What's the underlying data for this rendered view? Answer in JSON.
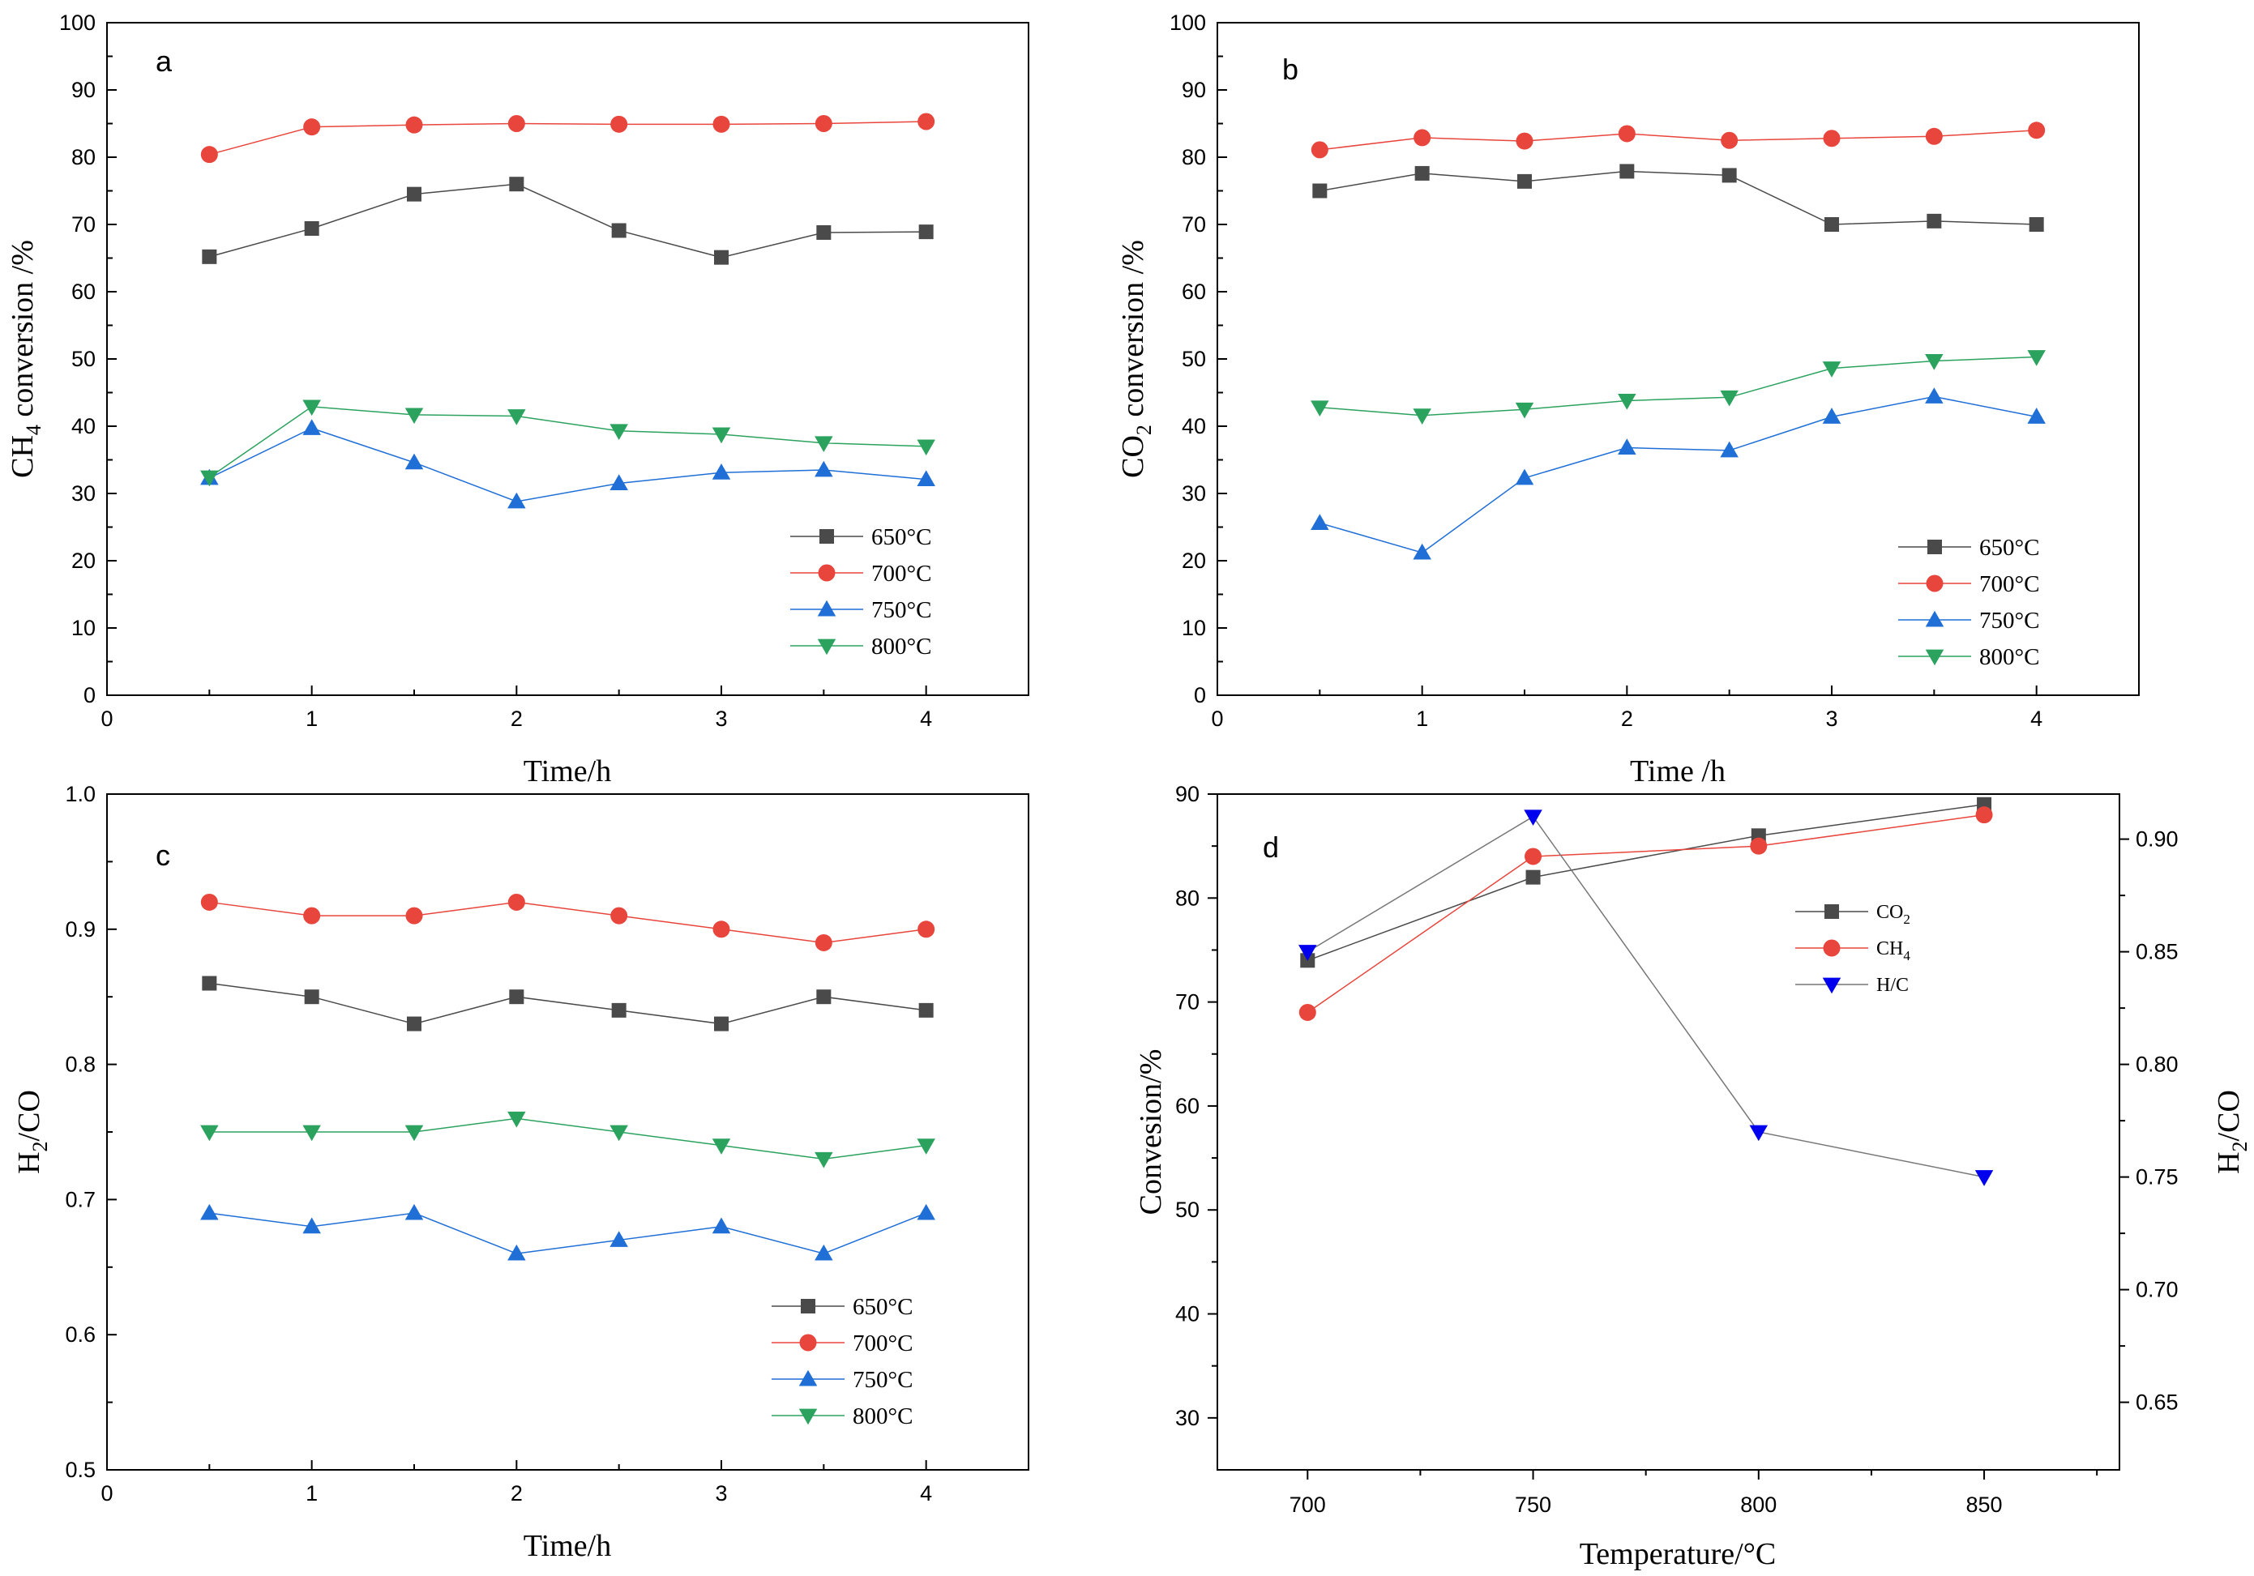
{
  "chart_data": [
    {
      "panel": "a",
      "type": "line",
      "xlabel": "Time/h",
      "ylabel_main": "CH",
      "ylabel_sub": "4",
      "ylabel_rest": " conversion /%",
      "xlim": [
        0,
        4.5
      ],
      "ylim": [
        0,
        100
      ],
      "xticks": [
        0,
        1,
        2,
        3,
        4
      ],
      "yticks": [
        0,
        10,
        20,
        30,
        40,
        50,
        60,
        70,
        80,
        90,
        100
      ],
      "x": [
        0.5,
        1,
        1.5,
        2,
        2.5,
        3,
        3.5,
        4
      ],
      "legend_position": "bottom-right",
      "series": [
        {
          "name": "650°C",
          "color": "#4a4a4a",
          "marker": "square",
          "values": [
            65.2,
            69.4,
            74.5,
            76.0,
            69.1,
            65.1,
            68.8,
            68.9
          ]
        },
        {
          "name": "700°C",
          "color": "#e8453c",
          "marker": "circle",
          "values": [
            80.4,
            84.5,
            84.8,
            85.0,
            84.9,
            84.9,
            85.0,
            85.3
          ]
        },
        {
          "name": "750°C",
          "color": "#1f6fd6",
          "marker": "triangle-up",
          "values": [
            32.3,
            39.7,
            34.6,
            28.8,
            31.5,
            33.1,
            33.5,
            32.1
          ]
        },
        {
          "name": "800°C",
          "color": "#2ca25f",
          "marker": "triangle-down",
          "values": [
            32.4,
            42.9,
            41.7,
            41.5,
            39.3,
            38.8,
            37.5,
            37.0
          ]
        }
      ]
    },
    {
      "panel": "b",
      "type": "line",
      "xlabel": "Time /h",
      "ylabel_main": "CO",
      "ylabel_sub": "2",
      "ylabel_rest": " conversion /%",
      "xlim": [
        0,
        4.5
      ],
      "ylim": [
        0,
        100
      ],
      "xticks": [
        0,
        1,
        2,
        3,
        4
      ],
      "yticks": [
        0,
        10,
        20,
        30,
        40,
        50,
        60,
        70,
        80,
        90,
        100
      ],
      "x": [
        0.5,
        1,
        1.5,
        2,
        2.5,
        3,
        3.5,
        4
      ],
      "legend_position": "bottom-right",
      "series": [
        {
          "name": "650°C",
          "color": "#4a4a4a",
          "marker": "square",
          "values": [
            75.0,
            77.6,
            76.4,
            77.9,
            77.3,
            70.0,
            70.5,
            70.0
          ]
        },
        {
          "name": "700°C",
          "color": "#e8453c",
          "marker": "circle",
          "values": [
            81.1,
            82.9,
            82.4,
            83.5,
            82.5,
            82.8,
            83.1,
            84.0
          ]
        },
        {
          "name": "750°C",
          "color": "#1f6fd6",
          "marker": "triangle-up",
          "values": [
            25.6,
            21.2,
            32.3,
            36.8,
            36.4,
            41.4,
            44.4,
            41.4
          ]
        },
        {
          "name": "800°C",
          "color": "#2ca25f",
          "marker": "triangle-down",
          "values": [
            42.8,
            41.6,
            42.5,
            43.8,
            44.3,
            48.6,
            49.7,
            50.3
          ]
        }
      ]
    },
    {
      "panel": "c",
      "type": "line",
      "xlabel": "Time/h",
      "ylabel_main": "H",
      "ylabel_sub": "2",
      "ylabel_rest": "/CO",
      "xlim": [
        0,
        4.5
      ],
      "ylim": [
        0.5,
        1.0
      ],
      "xticks": [
        0,
        1,
        2,
        3,
        4
      ],
      "yticks": [
        0.5,
        0.6,
        0.7,
        0.8,
        0.9,
        1.0
      ],
      "ytick_labels": [
        "0.5",
        "0.6",
        "0.7",
        "0.8",
        "0.9",
        "1.0"
      ],
      "x": [
        0.5,
        1,
        1.5,
        2,
        2.5,
        3,
        3.5,
        4
      ],
      "legend_position": "bottom-right",
      "series": [
        {
          "name": "650°C",
          "color": "#4a4a4a",
          "marker": "square",
          "values": [
            0.86,
            0.85,
            0.83,
            0.85,
            0.84,
            0.83,
            0.85,
            0.84
          ]
        },
        {
          "name": "700°C",
          "color": "#e8453c",
          "marker": "circle",
          "values": [
            0.92,
            0.91,
            0.91,
            0.92,
            0.91,
            0.9,
            0.89,
            0.9
          ]
        },
        {
          "name": "750°C",
          "color": "#1f6fd6",
          "marker": "triangle-up",
          "values": [
            0.69,
            0.68,
            0.69,
            0.66,
            0.67,
            0.68,
            0.66,
            0.69
          ]
        },
        {
          "name": "800°C",
          "color": "#2ca25f",
          "marker": "triangle-down",
          "values": [
            0.75,
            0.75,
            0.75,
            0.76,
            0.75,
            0.74,
            0.73,
            0.74
          ]
        }
      ]
    },
    {
      "panel": "d",
      "type": "line",
      "xlabel": "Temperature/°C",
      "ylabel_left": "Convesion/%",
      "ylabel_right_main": "H",
      "ylabel_right_sub": "2",
      "ylabel_right_rest": "/CO",
      "xlim": [
        680,
        880
      ],
      "ylim_left": [
        25,
        90
      ],
      "ylim_right": [
        0.62,
        0.92
      ],
      "xticks": [
        700,
        750,
        800,
        850
      ],
      "yticks_left": [
        30,
        40,
        50,
        60,
        70,
        80,
        90
      ],
      "yticks_right": [
        0.65,
        0.7,
        0.75,
        0.8,
        0.85,
        0.9
      ],
      "ytick_right_labels": [
        "0.65",
        "0.70",
        "0.75",
        "0.80",
        "0.85",
        "0.90"
      ],
      "x": [
        700,
        750,
        800,
        850
      ],
      "legend_position": "top-right",
      "series": [
        {
          "name_main": "CO",
          "name_sub": "2",
          "axis": "left",
          "color": "#4a4a4a",
          "marker": "square",
          "values": [
            74.0,
            82.0,
            86.0,
            89.0
          ]
        },
        {
          "name_main": "CH",
          "name_sub": "4",
          "axis": "left",
          "color": "#e8453c",
          "marker": "circle",
          "values": [
            69.0,
            84.0,
            85.0,
            88.0
          ]
        },
        {
          "name_main": "H/C",
          "name_sub": "",
          "axis": "right",
          "color": "#0000ee",
          "line_color": "#777777",
          "marker": "triangle-down",
          "values": [
            0.85,
            0.91,
            0.77,
            0.75
          ]
        }
      ]
    }
  ]
}
